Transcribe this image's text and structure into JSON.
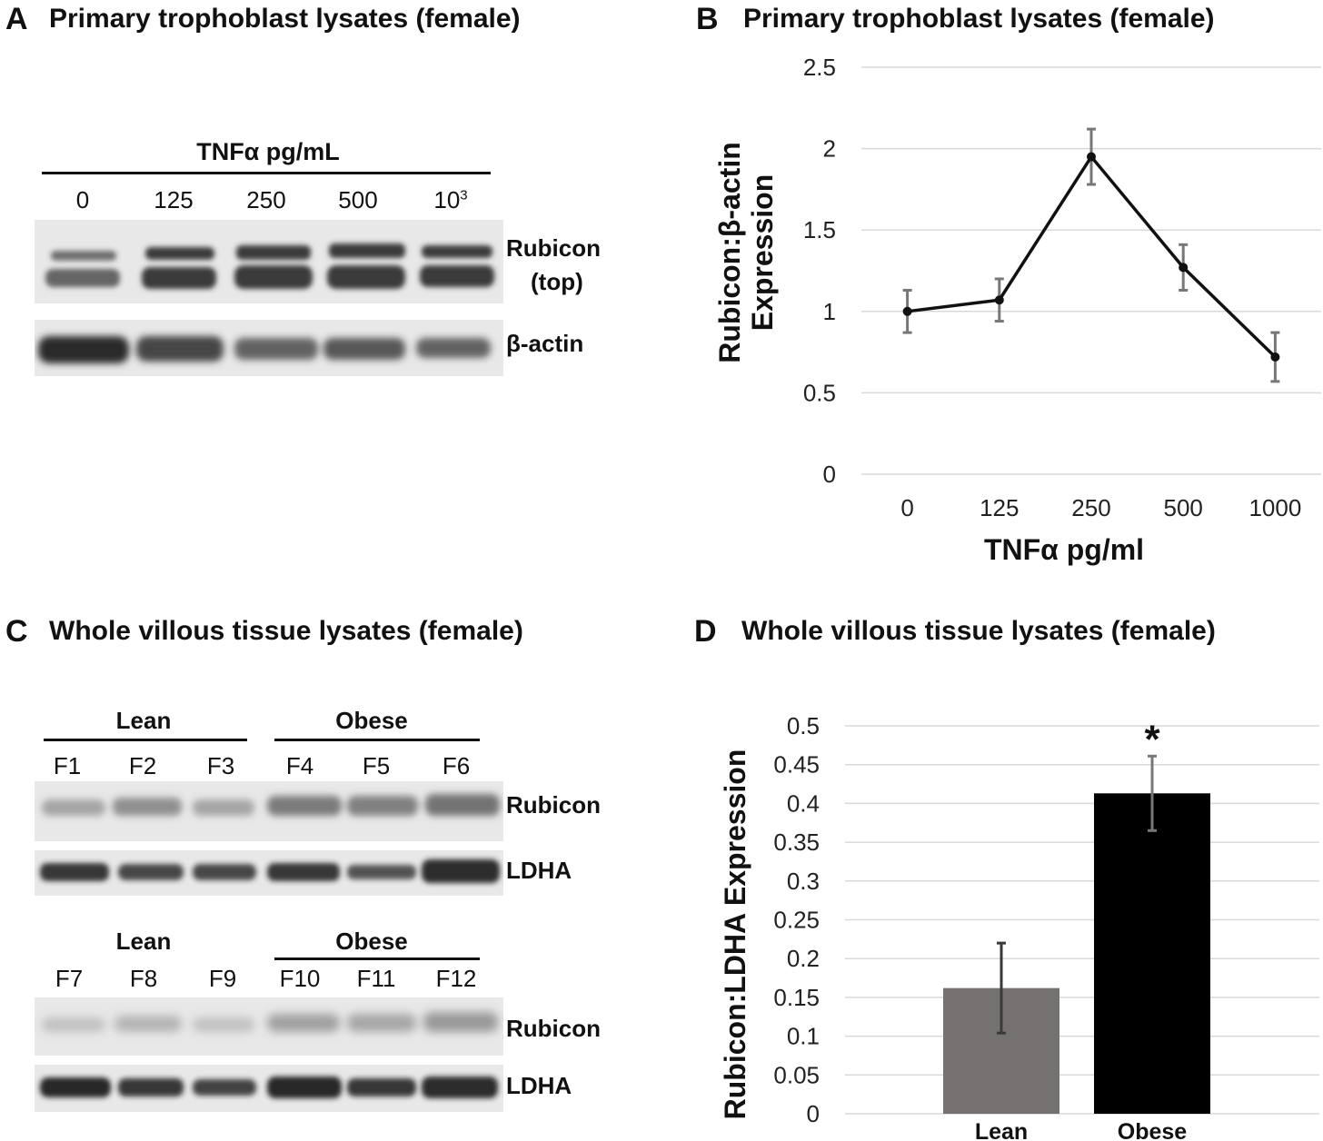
{
  "panel_a": {
    "letter": "A",
    "title": "Primary trophoblast lysates (female)",
    "treatment_label": "TNFα pg/mL",
    "lanes": [
      "0",
      "125",
      "250",
      "500",
      "10"
    ],
    "lane_superscript": "3",
    "bands": {
      "rubicon_line1": "Rubicon",
      "rubicon_line2": "(top)",
      "actin": "β-actin"
    }
  },
  "panel_b": {
    "letter": "B",
    "title": "Primary trophoblast lysates (female)"
  },
  "panel_c": {
    "letter": "C",
    "title": "Whole villous tissue lysates (female)",
    "set1": {
      "lean": "Lean",
      "obese": "Obese",
      "lanes": [
        "F1",
        "F2",
        "F3",
        "F4",
        "F5",
        "F6"
      ]
    },
    "set2": {
      "lean": "Lean",
      "obese": "Obese",
      "lanes": [
        "F7",
        "F8",
        "F9",
        "F10",
        "F11",
        "F12"
      ]
    },
    "bands": {
      "rubicon": "Rubicon",
      "ldha": "LDHA"
    }
  },
  "panel_d": {
    "letter": "D",
    "title": "Whole villous tissue lysates (female)"
  },
  "chart_data": [
    {
      "type": "line",
      "title": "Primary trophoblast lysates (female)",
      "xlabel": "TNFα pg/ml",
      "ylabel": [
        "Rubicon:β-actin",
        "Expression"
      ],
      "categories": [
        "0",
        "125",
        "250",
        "500",
        "1000"
      ],
      "values": [
        1.0,
        1.07,
        1.95,
        1.27,
        0.72
      ],
      "errors": [
        0.13,
        0.13,
        0.17,
        0.14,
        0.15
      ],
      "ylim": [
        0,
        2.5
      ],
      "yticks": [
        "0",
        "0.5",
        "1",
        "1.5",
        "2",
        "2.5"
      ],
      "grid": true,
      "color": "#111111",
      "error_color": "#777777"
    },
    {
      "type": "bar",
      "title": "Whole villous tissue lysates (female)",
      "xlabel": "",
      "ylabel": "Rubicon:LDHA Expression",
      "categories": [
        "Lean",
        "Obese"
      ],
      "values": [
        0.162,
        0.413
      ],
      "errors": [
        0.058,
        0.048
      ],
      "colors": [
        "#757171",
        "#000000"
      ],
      "annotations": [
        "",
        "*"
      ],
      "ylim": [
        0,
        0.5
      ],
      "yticks": [
        "0",
        "0.05",
        "0.1",
        "0.15",
        "0.2",
        "0.25",
        "0.3",
        "0.35",
        "0.4",
        "0.45",
        "0.5"
      ],
      "grid": true
    }
  ]
}
